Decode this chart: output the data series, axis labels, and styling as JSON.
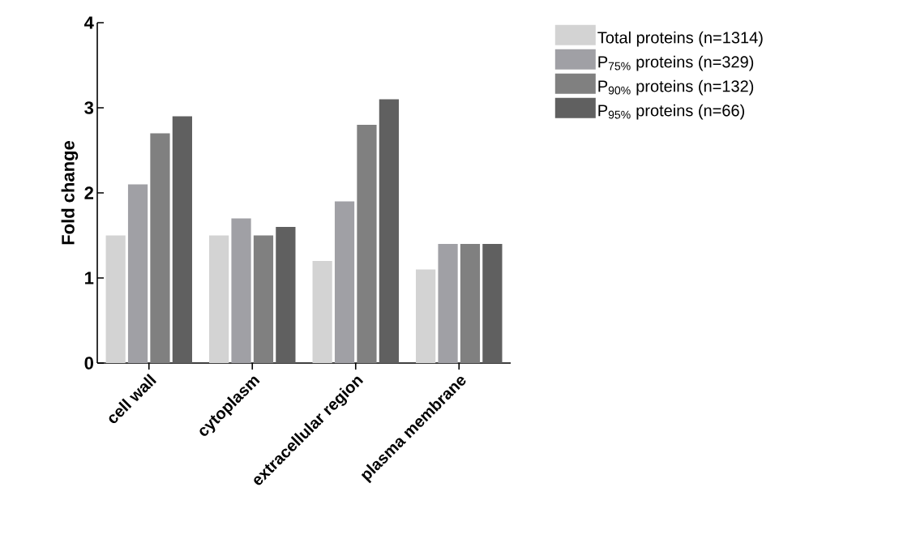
{
  "chart_data": {
    "type": "bar",
    "ylabel": "Fold change",
    "categories": [
      "cell wall",
      "cytoplasm",
      "extracellular region",
      "plasma membrane"
    ],
    "series": [
      {
        "name": "Total proteins (n=1314)",
        "color": "#d3d3d3",
        "values": [
          1.5,
          1.5,
          1.2,
          1.1
        ]
      },
      {
        "name": "P$_{75%}$ proteins (n=329)",
        "color": "#a0a0a5",
        "values": [
          2.1,
          1.7,
          1.9,
          1.4
        ]
      },
      {
        "name": "P$_{90%}$ proteins (n=132)",
        "color": "#808080",
        "values": [
          2.7,
          1.5,
          2.8,
          1.4
        ]
      },
      {
        "name": "P$_{95%}$ proteins  (n=66)",
        "color": "#606060",
        "values": [
          2.9,
          1.6,
          3.1,
          1.4
        ]
      }
    ],
    "ylim": [
      0,
      4
    ],
    "yticks": [
      0,
      1,
      2,
      3,
      4
    ],
    "grid": false,
    "legend": "top right"
  }
}
